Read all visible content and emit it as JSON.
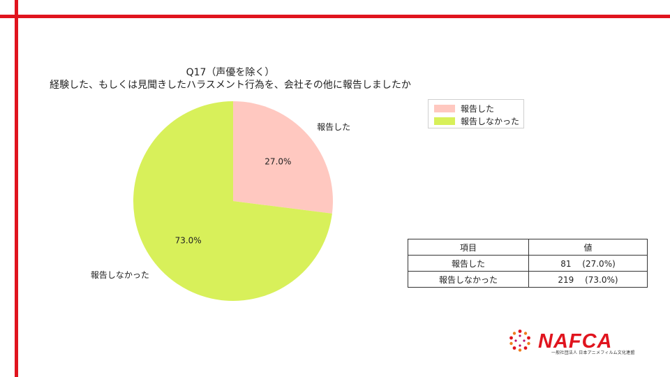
{
  "chart_title": {
    "line1": "Q17（声優を除く）",
    "line2": "経験した、もしくは見聞きしたハラスメント行為を、会社その他に報告しましたか"
  },
  "chart_data": {
    "type": "pie",
    "title": "Q17（声優を除く） 経験した、もしくは見聞きしたハラスメント行為を、会社その他に報告しましたか",
    "categories": [
      "報告した",
      "報告しなかった"
    ],
    "values": [
      81,
      219
    ],
    "percent_labels": [
      "27.0%",
      "73.0%"
    ],
    "colors": [
      "#ffc8c0",
      "#d8f05a"
    ],
    "legend": "top-right"
  },
  "legend": {
    "items": [
      {
        "label": "報告した",
        "color": "#ffc8c0"
      },
      {
        "label": "報告しなかった",
        "color": "#d8f05a"
      }
    ]
  },
  "table": {
    "headers": [
      "項目",
      "値"
    ],
    "rows": [
      [
        "報告した",
        "81 　(27.0%)"
      ],
      [
        "報告しなかった",
        "219 　(73.0%)"
      ]
    ]
  },
  "logo": {
    "text": "NAFCA",
    "subtitle": "一般社団法人 日本アニメフィルム文化連盟"
  }
}
